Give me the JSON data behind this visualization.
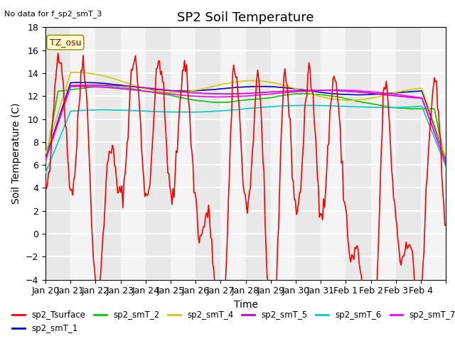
{
  "title": "SP2 Soil Temperature",
  "subtitle": "No data for f_sp2_smT_3",
  "xlabel": "Time",
  "ylabel": "Soil Temperature (C)",
  "tz_label": "TZ_osu",
  "ylim": [
    -4,
    18
  ],
  "yticks": [
    -4,
    -2,
    0,
    2,
    4,
    6,
    8,
    10,
    12,
    14,
    16,
    18
  ],
  "xtick_positions": [
    0,
    1,
    2,
    3,
    4,
    5,
    6,
    7,
    8,
    9,
    10,
    11,
    12,
    13,
    14,
    15,
    16
  ],
  "xtick_labels": [
    "Jan 20",
    "Jan 21",
    "Jan 22",
    "Jan 23",
    "Jan 24",
    "Jan 25",
    "Jan 26",
    "Jan 27",
    "Jan 28",
    "Jan 29",
    "Jan 30",
    "Jan 31",
    "Feb 1",
    "Feb 2",
    "Feb 3",
    "Feb 4",
    ""
  ],
  "series_colors": {
    "sp2_Tsurface": "#ff0000",
    "sp2_smT_1": "#0000cc",
    "sp2_smT_2": "#00cc00",
    "sp2_smT_4": "#cccc00",
    "sp2_smT_5": "#cc00cc",
    "sp2_smT_6": "#00cccc",
    "sp2_smT_7": "#ff00ff"
  },
  "background_color": "#ffffff",
  "plot_bg_even": "#e8e8e8",
  "plot_bg_odd": "#f4f4f4",
  "grid_color": "#ffffff",
  "title_fontsize": 13,
  "label_fontsize": 10,
  "tick_fontsize": 9
}
